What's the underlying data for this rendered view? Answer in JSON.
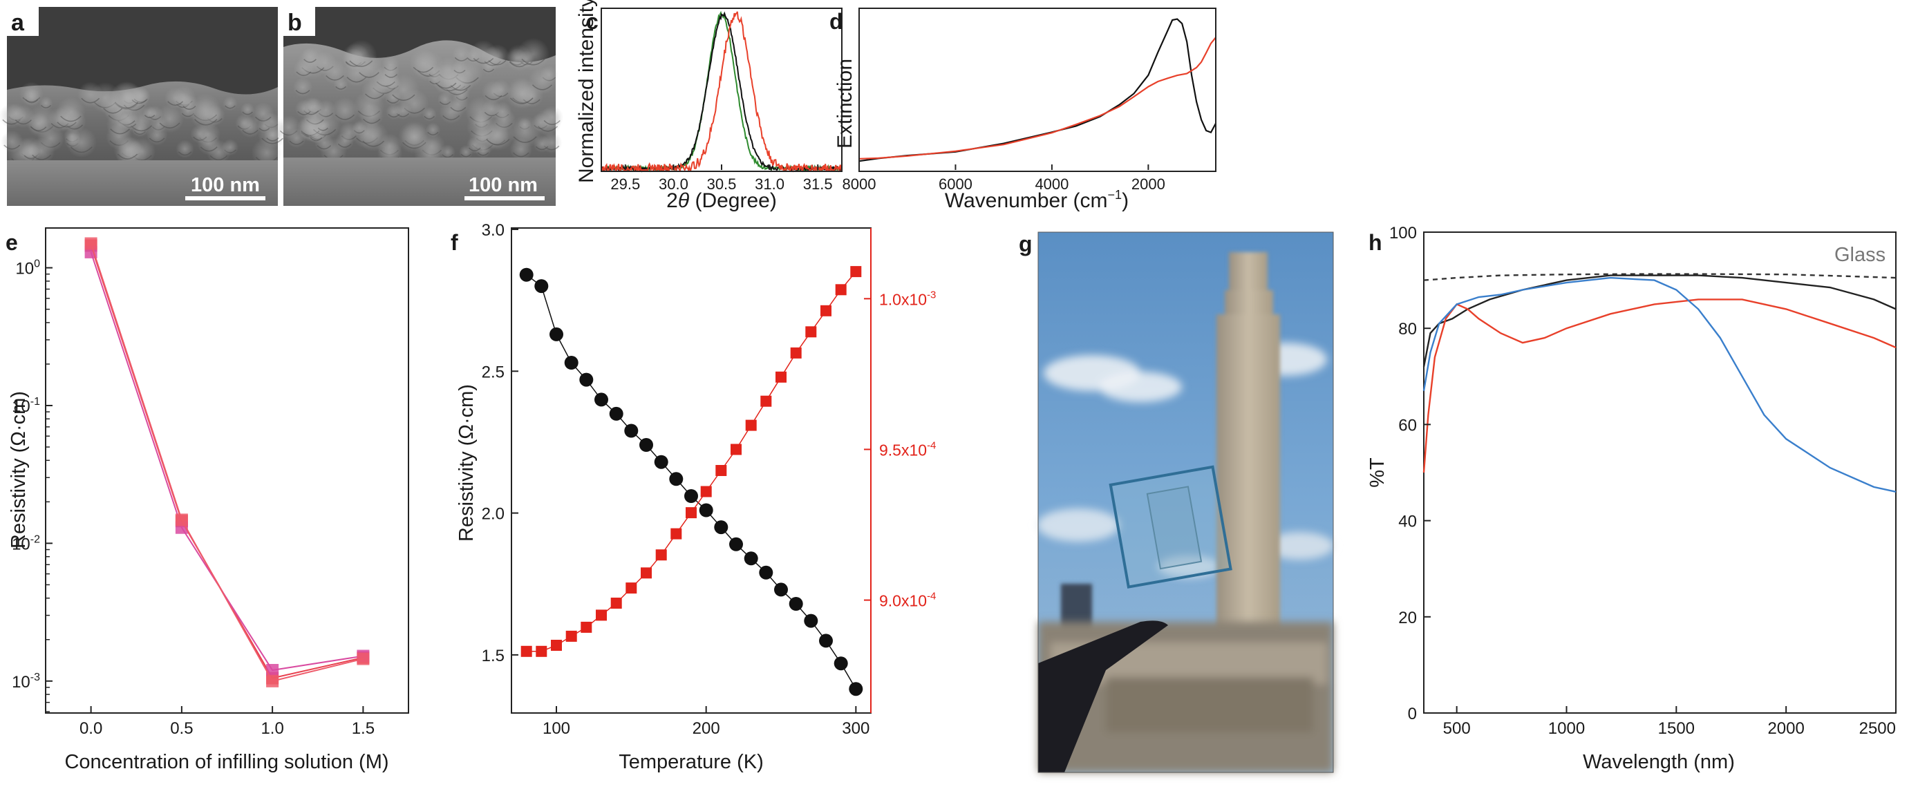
{
  "panel_labels": {
    "a": "a",
    "b": "b",
    "c": "c",
    "d": "d",
    "e": "e",
    "f": "f",
    "g": "g",
    "h": "h"
  },
  "sem": {
    "a_scale": "100 nm",
    "b_scale": "100 nm"
  },
  "chart_data": [
    {
      "id": "c",
      "type": "line",
      "xlabel_pre": "2",
      "xlabel_sym": "θ",
      "xlabel_post": " (Degree)",
      "ylabel": "Normalized intensity",
      "xlim": [
        29.25,
        31.75
      ],
      "ylim": [
        0,
        1.05
      ],
      "xticks": [
        "29.5",
        "30.0",
        "30.5",
        "31.0",
        "31.5"
      ],
      "series": [
        {
          "name": "green",
          "color": "#2e8b2e",
          "center": 30.5,
          "width": 0.2
        },
        {
          "name": "black",
          "color": "#111111",
          "center": 30.52,
          "width": 0.22
        },
        {
          "name": "red",
          "color": "#e8402a",
          "center": 30.65,
          "width": 0.22
        }
      ]
    },
    {
      "id": "d",
      "type": "line",
      "xlabel": "Wavenumber (cm",
      "xlabel_sup": "−1",
      "xlabel_end": ")",
      "ylabel": "Extinction",
      "xlim": [
        8000,
        600
      ],
      "ylim": [
        0,
        1.05
      ],
      "xticks": [
        "8000",
        "6000",
        "4000",
        "2000"
      ],
      "series": [
        {
          "name": "black",
          "color": "#111111",
          "x": [
            8000,
            7600,
            7000,
            6000,
            5000,
            4000,
            3500,
            3000,
            2600,
            2300,
            2000,
            1800,
            1600,
            1500,
            1400,
            1300,
            1200,
            1100,
            1000,
            900,
            800,
            700,
            600
          ],
          "y": [
            0.06,
            0.08,
            0.09,
            0.12,
            0.17,
            0.24,
            0.29,
            0.35,
            0.42,
            0.5,
            0.62,
            0.76,
            0.9,
            0.97,
            0.98,
            0.95,
            0.83,
            0.62,
            0.44,
            0.33,
            0.26,
            0.24,
            0.3
          ]
        },
        {
          "name": "red",
          "color": "#e8402a",
          "x": [
            8000,
            7600,
            7000,
            6000,
            5000,
            4000,
            3500,
            3000,
            2600,
            2300,
            2000,
            1800,
            1600,
            1400,
            1200,
            1000,
            900,
            800,
            700,
            600
          ],
          "y": [
            0.07,
            0.08,
            0.09,
            0.12,
            0.17,
            0.24,
            0.29,
            0.35,
            0.41,
            0.47,
            0.54,
            0.58,
            0.6,
            0.62,
            0.63,
            0.66,
            0.7,
            0.76,
            0.82,
            0.86
          ]
        }
      ]
    },
    {
      "id": "e",
      "type": "line",
      "xlabel": "Concentration of infilling solution (M)",
      "ylabel": "Resistivity (Ω·cm)",
      "yscale": "log",
      "xlim": [
        -0.25,
        1.75
      ],
      "ylim": [
        0.0006,
        1.9
      ],
      "xticks": [
        "0.0",
        "0.5",
        "1.0",
        "1.5"
      ],
      "yticks": [
        {
          "value": 1,
          "base": "10",
          "exp": "0"
        },
        {
          "value": 0.1,
          "base": "10",
          "exp": "-1"
        },
        {
          "value": 0.01,
          "base": "10",
          "exp": "-2"
        },
        {
          "value": 0.001,
          "base": "10",
          "exp": "-3"
        }
      ],
      "series": [
        {
          "name": "s1",
          "color": "#e8404e",
          "x": [
            0,
            0.5,
            1.0,
            1.5
          ],
          "y": [
            1.45,
            0.0145,
            0.00105,
            0.00148
          ]
        },
        {
          "name": "s2",
          "color": "#d94aa0",
          "x": [
            0,
            0.5,
            1.0,
            1.5
          ],
          "y": [
            1.3,
            0.013,
            0.0012,
            0.00152
          ]
        },
        {
          "name": "s3",
          "color": "#ee5a6a",
          "x": [
            0,
            0.5,
            1.0,
            1.5
          ],
          "y": [
            1.5,
            0.0148,
            0.001,
            0.00145
          ]
        }
      ]
    },
    {
      "id": "f",
      "type": "scatter",
      "xlabel": "Temperature (K)",
      "ylabel": "Resistivity (Ω·cm)",
      "xlim": [
        70,
        310
      ],
      "xticks": [
        "100",
        "200",
        "300"
      ],
      "y_left": {
        "lim": [
          1.3,
          3.0
        ],
        "ticks": [
          "1.5",
          "2.0",
          "2.5",
          "3.0"
        ]
      },
      "y_right": {
        "lim": [
          0.000863,
          0.001023
        ],
        "ticks": [
          {
            "value": 0.0009,
            "mant": "9.0x10",
            "exp": "-4"
          },
          {
            "value": 0.00095,
            "mant": "9.5x10",
            "exp": "-4"
          },
          {
            "value": 0.001,
            "mant": "1.0x10",
            "exp": "-3"
          }
        ]
      },
      "x": [
        80,
        90,
        100,
        110,
        120,
        130,
        140,
        150,
        160,
        170,
        180,
        190,
        200,
        210,
        220,
        230,
        240,
        250,
        260,
        270,
        280,
        290,
        300
      ],
      "series": [
        {
          "name": "black",
          "axis": "left",
          "color": "#111111",
          "marker": "circle",
          "y": [
            2.84,
            2.8,
            2.63,
            2.53,
            2.47,
            2.4,
            2.35,
            2.29,
            2.24,
            2.18,
            2.12,
            2.06,
            2.01,
            1.95,
            1.89,
            1.84,
            1.79,
            1.73,
            1.68,
            1.62,
            1.55,
            1.47,
            1.38
          ]
        },
        {
          "name": "red",
          "axis": "right",
          "color": "#e2231a",
          "marker": "square",
          "y": [
            0.000883,
            0.000883,
            0.000885,
            0.000888,
            0.000891,
            0.000895,
            0.000899,
            0.000904,
            0.000909,
            0.000915,
            0.000922,
            0.000929,
            0.000936,
            0.000943,
            0.00095,
            0.000958,
            0.000966,
            0.000974,
            0.000982,
            0.000989,
            0.000996,
            0.001003,
            0.001009
          ]
        }
      ]
    },
    {
      "id": "h",
      "type": "line",
      "xlabel": "Wavelength (nm)",
      "ylabel": "%T",
      "annotation": "Glass",
      "xlim": [
        350,
        2500
      ],
      "ylim": [
        0,
        100
      ],
      "xticks": [
        "500",
        "1000",
        "1500",
        "2000",
        "2500"
      ],
      "yticks": [
        "0",
        "20",
        "40",
        "60",
        "80",
        "100"
      ],
      "series": [
        {
          "name": "glass",
          "color": "#333333",
          "dashed": true,
          "x": [
            350,
            500,
            700,
            1000,
            1300,
            1600,
            2000,
            2300,
            2500
          ],
          "y": [
            90,
            90.5,
            91,
            91.2,
            91.3,
            91.3,
            91.2,
            90.8,
            90.5
          ]
        },
        {
          "name": "black",
          "color": "#222222",
          "x": [
            350,
            380,
            420,
            480,
            550,
            650,
            800,
            1000,
            1200,
            1400,
            1600,
            1800,
            2000,
            2200,
            2400,
            2500
          ],
          "y": [
            72,
            79,
            81,
            82,
            84,
            86,
            88,
            90,
            91,
            91,
            91,
            90.5,
            89.5,
            88.5,
            86,
            84
          ]
        },
        {
          "name": "red",
          "color": "#e8402a",
          "x": [
            350,
            370,
            400,
            450,
            500,
            550,
            600,
            700,
            800,
            900,
            1000,
            1200,
            1400,
            1600,
            1800,
            2000,
            2200,
            2400,
            2500
          ],
          "y": [
            50,
            62,
            74,
            82,
            85,
            84,
            82,
            79,
            77,
            78,
            80,
            83,
            85,
            86,
            86,
            84,
            81,
            78,
            76
          ]
        },
        {
          "name": "blue",
          "color": "#3a7fcc",
          "x": [
            350,
            380,
            420,
            500,
            600,
            700,
            800,
            1000,
            1200,
            1400,
            1500,
            1600,
            1700,
            1800,
            1900,
            2000,
            2200,
            2400,
            2500
          ],
          "y": [
            67,
            75,
            81,
            85,
            86.5,
            87,
            88,
            89.5,
            90.5,
            90,
            88,
            84,
            78,
            70,
            62,
            57,
            51,
            47,
            46
          ]
        }
      ]
    }
  ]
}
